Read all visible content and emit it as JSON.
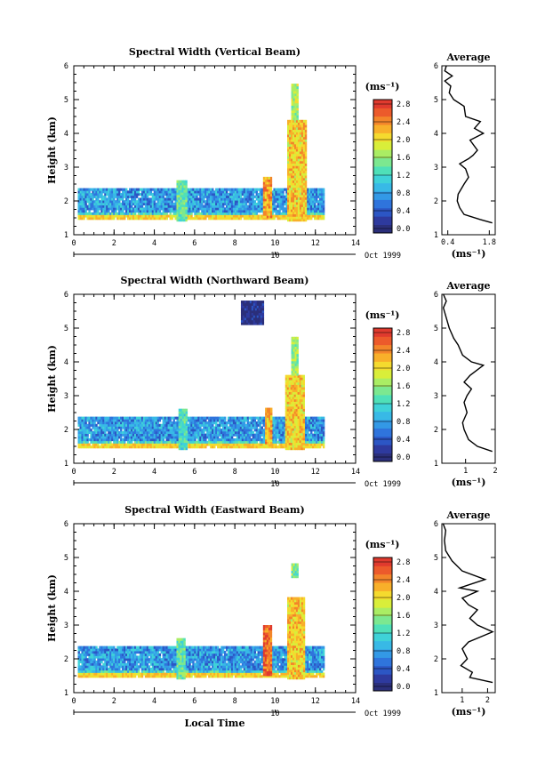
{
  "chart_data": [
    {
      "type": "heatmap",
      "title": "Spectral Width (Vertical Beam)",
      "xlabel": "",
      "ylabel": "Height (km)",
      "xlim": [
        0,
        14
      ],
      "ylim": [
        1,
        6
      ],
      "xticks": [
        "0",
        "2",
        "4",
        "6",
        "8",
        "10",
        "12",
        "14"
      ],
      "yticks": [
        "1",
        "2",
        "3",
        "4",
        "5",
        "6"
      ],
      "date_label": "10",
      "date_suffix": "Oct 1999",
      "colorbar": {
        "unit": "(ms⁻¹)",
        "ticks": [
          "2.8",
          "2.4",
          "2.0",
          "1.6",
          "1.2",
          "0.8",
          "0.4",
          "0.0"
        ],
        "range": [
          0,
          3.0
        ]
      },
      "regions": [
        {
          "x": [
            0.2,
            12.4
          ],
          "y": [
            1.45,
            2.35
          ],
          "level": 0.85
        },
        {
          "x": [
            5.1,
            5.6
          ],
          "y": [
            1.4,
            2.6
          ],
          "level": 1.5
        },
        {
          "x": [
            9.4,
            9.8
          ],
          "y": [
            1.5,
            2.7
          ],
          "level": 2.4
        },
        {
          "x": [
            10.6,
            11.5
          ],
          "y": [
            1.4,
            4.4
          ],
          "level": 2.2
        },
        {
          "x": [
            10.8,
            11.1
          ],
          "y": [
            4.4,
            5.4
          ],
          "level": 1.8
        }
      ],
      "profile": {
        "title": "Average",
        "xlabel": "(ms⁻¹)",
        "xticks": [
          "0.4",
          "1.8"
        ],
        "xlim": [
          0.2,
          2.0
        ],
        "ylim": [
          1,
          6
        ],
        "yticks": [
          "1",
          "2",
          "3",
          "4",
          "5",
          "6"
        ],
        "points": [
          [
            1.9,
            1.35
          ],
          [
            1.5,
            1.45
          ],
          [
            0.95,
            1.6
          ],
          [
            0.8,
            1.8
          ],
          [
            0.72,
            2.0
          ],
          [
            0.75,
            2.2
          ],
          [
            0.95,
            2.5
          ],
          [
            1.1,
            2.7
          ],
          [
            1.0,
            2.95
          ],
          [
            0.8,
            3.1
          ],
          [
            1.1,
            3.25
          ],
          [
            1.25,
            3.35
          ],
          [
            1.4,
            3.5
          ],
          [
            1.15,
            3.8
          ],
          [
            1.6,
            4.0
          ],
          [
            1.3,
            4.15
          ],
          [
            1.5,
            4.35
          ],
          [
            1.0,
            4.5
          ],
          [
            0.95,
            4.8
          ],
          [
            0.6,
            5.0
          ],
          [
            0.45,
            5.2
          ],
          [
            0.5,
            5.4
          ],
          [
            0.3,
            5.55
          ],
          [
            0.55,
            5.7
          ],
          [
            0.3,
            5.85
          ],
          [
            0.35,
            6.0
          ]
        ]
      }
    },
    {
      "type": "heatmap",
      "title": "Spectral Width (Northward Beam)",
      "xlabel": "",
      "ylabel": "Height (km)",
      "xlim": [
        0,
        14
      ],
      "ylim": [
        1,
        6
      ],
      "xticks": [
        "0",
        "2",
        "4",
        "6",
        "8",
        "10",
        "12",
        "14"
      ],
      "yticks": [
        "1",
        "2",
        "3",
        "4",
        "5",
        "6"
      ],
      "date_label": "10",
      "date_suffix": "Oct 1999",
      "colorbar": {
        "unit": "(ms⁻¹)",
        "ticks": [
          "2.8",
          "2.4",
          "2.0",
          "1.6",
          "1.2",
          "0.8",
          "0.4",
          "0.0"
        ],
        "range": [
          0,
          3.0
        ]
      },
      "regions": [
        {
          "x": [
            0.2,
            12.4
          ],
          "y": [
            1.45,
            2.35
          ],
          "level": 0.85
        },
        {
          "x": [
            5.2,
            5.6
          ],
          "y": [
            1.4,
            2.6
          ],
          "level": 1.4
        },
        {
          "x": [
            9.5,
            9.8
          ],
          "y": [
            1.5,
            2.6
          ],
          "level": 2.3
        },
        {
          "x": [
            10.5,
            11.4
          ],
          "y": [
            1.4,
            3.6
          ],
          "level": 2.2
        },
        {
          "x": [
            10.8,
            11.1
          ],
          "y": [
            3.6,
            4.7
          ],
          "level": 1.7
        },
        {
          "x": [
            8.3,
            9.4
          ],
          "y": [
            5.1,
            5.8
          ],
          "level": 0.1
        }
      ],
      "profile": {
        "title": "Average",
        "xlabel": "(ms⁻¹)",
        "xticks": [
          "1",
          "2"
        ],
        "xlim": [
          0.2,
          2.0
        ],
        "ylim": [
          1,
          6
        ],
        "yticks": [
          "1",
          "2",
          "3",
          "4",
          "5",
          "6"
        ],
        "points": [
          [
            1.9,
            1.35
          ],
          [
            1.4,
            1.5
          ],
          [
            1.1,
            1.7
          ],
          [
            0.95,
            2.0
          ],
          [
            0.9,
            2.2
          ],
          [
            1.05,
            2.5
          ],
          [
            0.95,
            2.8
          ],
          [
            1.05,
            3.0
          ],
          [
            1.2,
            3.2
          ],
          [
            0.95,
            3.4
          ],
          [
            1.15,
            3.6
          ],
          [
            1.6,
            3.9
          ],
          [
            1.2,
            4.0
          ],
          [
            0.9,
            4.2
          ],
          [
            0.75,
            4.5
          ],
          [
            0.6,
            4.7
          ],
          [
            0.45,
            5.0
          ],
          [
            0.35,
            5.3
          ],
          [
            0.25,
            5.6
          ],
          [
            0.35,
            5.8
          ],
          [
            0.25,
            6.0
          ]
        ]
      }
    },
    {
      "type": "heatmap",
      "title": "Spectral Width (Eastward Beam)",
      "xlabel": "Local Time",
      "ylabel": "Height (km)",
      "xlim": [
        0,
        14
      ],
      "ylim": [
        1,
        6
      ],
      "xticks": [
        "0",
        "2",
        "4",
        "6",
        "8",
        "10",
        "12",
        "14"
      ],
      "yticks": [
        "1",
        "2",
        "3",
        "4",
        "5",
        "6"
      ],
      "date_label": "10",
      "date_suffix": "Oct 1999",
      "colorbar": {
        "unit": "(ms⁻¹)",
        "ticks": [
          "2.8",
          "2.4",
          "2.0",
          "1.6",
          "1.2",
          "0.8",
          "0.4",
          "0.0"
        ],
        "range": [
          0,
          3.0
        ]
      },
      "regions": [
        {
          "x": [
            0.2,
            12.4
          ],
          "y": [
            1.45,
            2.35
          ],
          "level": 0.85
        },
        {
          "x": [
            5.1,
            5.5
          ],
          "y": [
            1.4,
            2.6
          ],
          "level": 1.5
        },
        {
          "x": [
            9.4,
            9.8
          ],
          "y": [
            1.5,
            2.95
          ],
          "level": 2.7
        },
        {
          "x": [
            10.6,
            11.4
          ],
          "y": [
            1.4,
            3.8
          ],
          "level": 2.2
        },
        {
          "x": [
            10.8,
            11.1
          ],
          "y": [
            4.4,
            4.8
          ],
          "level": 1.6
        }
      ],
      "profile": {
        "title": "Average",
        "xlabel": "(ms⁻¹)",
        "xticks": [
          "1",
          "2"
        ],
        "xlim": [
          0.2,
          2.3
        ],
        "ylim": [
          1,
          6
        ],
        "yticks": [
          "1",
          "2",
          "3",
          "4",
          "5",
          "6"
        ],
        "points": [
          [
            2.2,
            1.3
          ],
          [
            1.3,
            1.45
          ],
          [
            1.4,
            1.6
          ],
          [
            0.95,
            1.8
          ],
          [
            1.2,
            2.0
          ],
          [
            1.0,
            2.3
          ],
          [
            1.25,
            2.5
          ],
          [
            2.2,
            2.8
          ],
          [
            1.6,
            3.0
          ],
          [
            1.3,
            3.2
          ],
          [
            1.6,
            3.45
          ],
          [
            1.25,
            3.6
          ],
          [
            1.0,
            3.8
          ],
          [
            1.6,
            4.0
          ],
          [
            0.9,
            4.1
          ],
          [
            1.9,
            4.35
          ],
          [
            1.0,
            4.6
          ],
          [
            0.6,
            4.9
          ],
          [
            0.35,
            5.2
          ],
          [
            0.3,
            5.5
          ],
          [
            0.35,
            5.8
          ],
          [
            0.25,
            6.0
          ]
        ]
      }
    }
  ]
}
